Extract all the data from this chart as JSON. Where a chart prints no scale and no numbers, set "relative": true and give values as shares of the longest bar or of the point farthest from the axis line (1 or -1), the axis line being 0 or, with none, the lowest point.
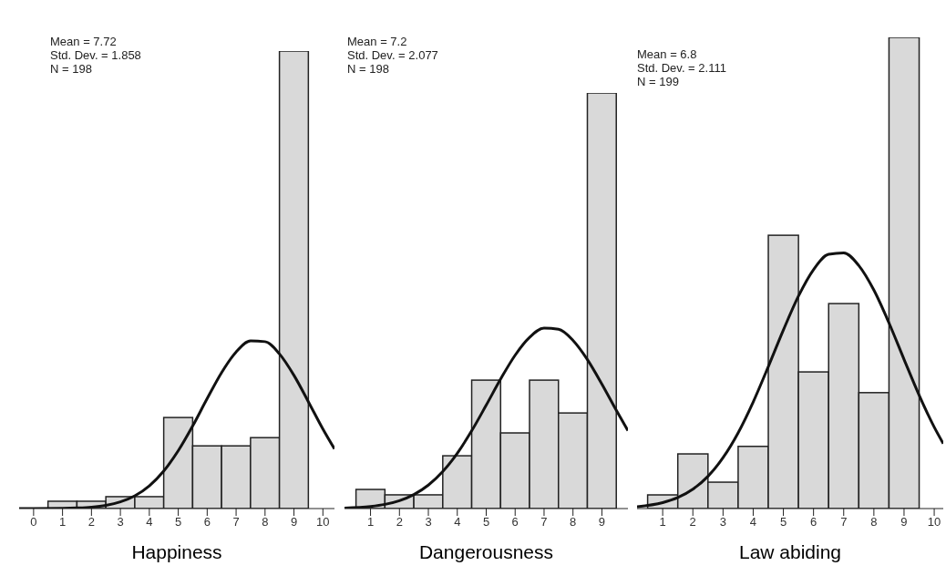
{
  "chart_data": [
    {
      "type": "histogram",
      "relative": true,
      "xlabel": "Happiness",
      "xlim": [
        -0.5,
        10.4
      ],
      "xticks": [
        0,
        1,
        2,
        3,
        4,
        5,
        6,
        7,
        8,
        9,
        10
      ],
      "annotations": [
        "Mean = 7.72",
        "Std. Dev. = 1.858",
        "N = 198"
      ],
      "series": [
        {
          "color": "#d9d9d9",
          "bins": [
            0.5,
            1.5,
            2.5,
            3.5,
            4.5,
            5.5,
            6.5,
            7.5,
            8.5,
            9.5
          ],
          "values": [
            0.016,
            0.016,
            0.026,
            0.026,
            0.199,
            0.137,
            0.137,
            0.155,
            1
          ]
        },
        {
          "type": "line",
          "color": "#111111",
          "x": [
            -0.5,
            0,
            1,
            1.5,
            2,
            2.5,
            3,
            3.5,
            4,
            4.5,
            5,
            5.5,
            6,
            6.5,
            7,
            7.5,
            8,
            8.5,
            9,
            9.5,
            10,
            10.4
          ],
          "values": [
            0,
            0,
            0.0005,
            0.0014,
            0.0032,
            0.0071,
            0.0147,
            0.028,
            0.0497,
            0.0822,
            0.1264,
            0.1807,
            0.2404,
            0.2974,
            0.3423,
            0.3664,
            0.3648,
            0.3379,
            0.2911,
            0.2332,
            0.1738,
            0.1304
          ]
        }
      ]
    },
    {
      "type": "histogram",
      "relative": true,
      "xlabel": "Dangerousness",
      "xlim": [
        0.1,
        9.9
      ],
      "xticks": [
        1,
        2,
        3,
        4,
        5,
        6,
        7,
        8,
        9
      ],
      "annotations": [
        "Mean = 7.2",
        "Std. Dev. = 2.077",
        "N = 198"
      ],
      "series": [
        {
          "color": "#d9d9d9",
          "bins": [
            0.5,
            1.5,
            2.5,
            3.5,
            4.5,
            5.5,
            6.5,
            7.5,
            8.5,
            9.5
          ],
          "values": [
            0.046,
            0.033,
            0.033,
            0.127,
            0.309,
            0.182,
            0.309,
            0.23,
            1
          ]
        },
        {
          "type": "line",
          "color": "#111111",
          "x": [
            0.1,
            1,
            1.5,
            2,
            2.5,
            3,
            3.5,
            4,
            4.5,
            5,
            5.5,
            6,
            6.5,
            7,
            7.5,
            8,
            8.5,
            9,
            9.5,
            9.9
          ],
          "values": [
            0.0013,
            0.0051,
            0.0101,
            0.019,
            0.0337,
            0.0564,
            0.0892,
            0.1331,
            0.1873,
            0.2488,
            0.3119,
            0.369,
            0.4119,
            0.434,
            0.4315,
            0.4048,
            0.3584,
            0.2995,
            0.2362,
            0.1873
          ]
        }
      ]
    },
    {
      "type": "histogram",
      "relative": true,
      "xlabel": "Law abiding",
      "xlim": [
        0.15,
        10.3
      ],
      "xticks": [
        1,
        2,
        3,
        4,
        5,
        6,
        7,
        8,
        9,
        10
      ],
      "annotations": [
        "Mean = 6.8",
        "Std. Dev. = 2.111",
        "N = 199"
      ],
      "series": [
        {
          "color": "#d9d9d9",
          "bins": [
            0.5,
            1.5,
            2.5,
            3.5,
            4.5,
            5.5,
            6.5,
            7.5,
            8.5,
            9.5
          ],
          "values": [
            0.029,
            0.116,
            0.056,
            0.132,
            0.58,
            0.29,
            0.435,
            0.246,
            1
          ]
        },
        {
          "type": "line",
          "color": "#111111",
          "x": [
            0.15,
            1,
            1.5,
            2,
            2.5,
            3,
            3.5,
            4,
            4.5,
            5,
            5.5,
            6,
            6.5,
            7,
            7.5,
            8,
            8.5,
            9,
            9.5,
            10,
            10.3
          ],
          "values": [
            0.0038,
            0.0125,
            0.0233,
            0.0411,
            0.0684,
            0.1079,
            0.1606,
            0.2262,
            0.3011,
            0.3789,
            0.4509,
            0.5072,
            0.5395,
            0.5425,
            0.5158,
            0.4637,
            0.3941,
            0.3166,
            0.2406,
            0.1728,
            0.1379
          ]
        }
      ]
    }
  ]
}
